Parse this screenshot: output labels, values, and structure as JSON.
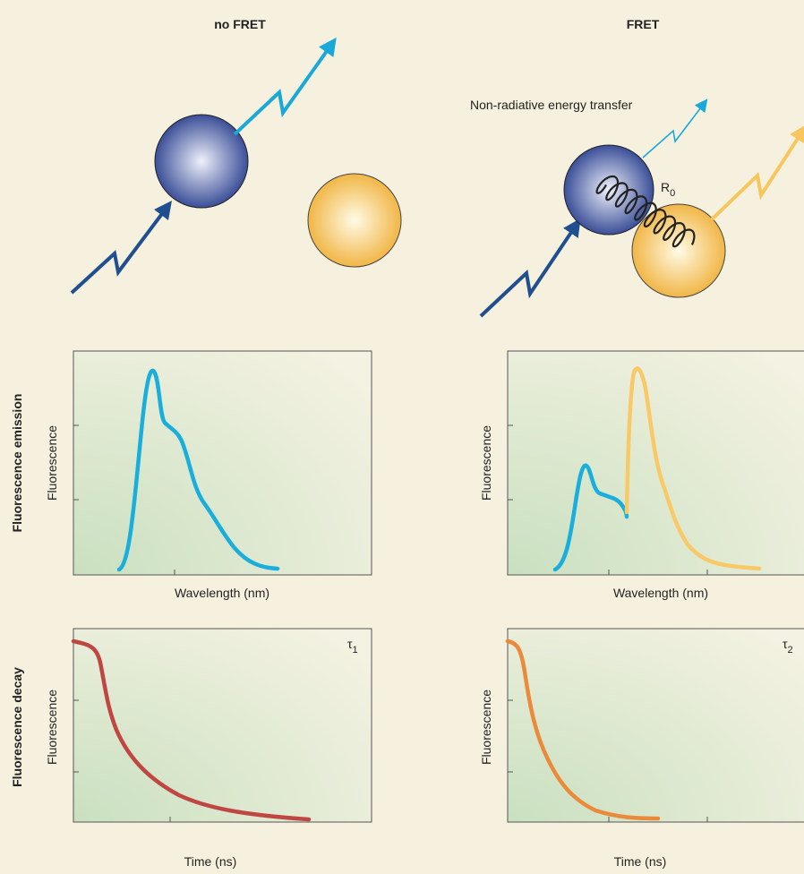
{
  "header": {
    "left": "no FRET",
    "right": "FRET"
  },
  "illustration": {
    "transfer_label": "Non-radiative energy transfer",
    "distance": {
      "symbol": "R",
      "subscript": "0"
    }
  },
  "rows": [
    {
      "label": "Fluorescence emission",
      "y_label": "Fluorescence",
      "x_label": "Wavelength (nm)"
    },
    {
      "label": "Fluorescence decay",
      "y_label": "Fluorescence",
      "x_label": "Time (ns)",
      "lifetimes": [
        {
          "symbol": "τ",
          "subscript": "1"
        },
        {
          "symbol": "τ",
          "subscript": "2"
        }
      ]
    }
  ]
}
